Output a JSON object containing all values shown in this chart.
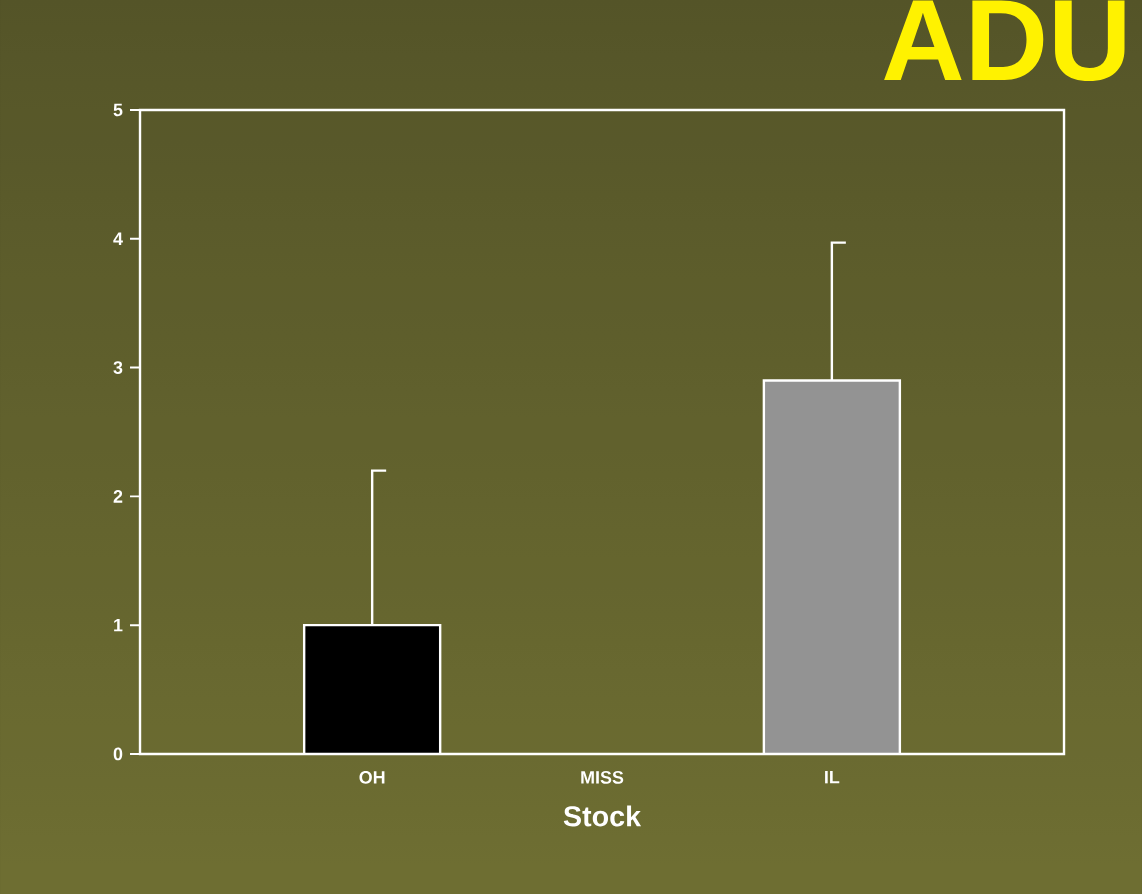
{
  "chart_data": {
    "type": "bar",
    "title": "ADU",
    "xlabel": "Stock",
    "categories": [
      "OH",
      "MISS",
      "IL"
    ],
    "values": [
      1.0,
      null,
      2.9
    ],
    "colors": [
      "#000000",
      "#939393",
      "#939393"
    ],
    "errors": [
      [
        1.0,
        2.2
      ],
      null,
      [
        2.9,
        3.97
      ]
    ],
    "ylim": [
      0,
      5
    ],
    "yticks": [
      0,
      1,
      2,
      3,
      4,
      5
    ],
    "grid": false
  }
}
